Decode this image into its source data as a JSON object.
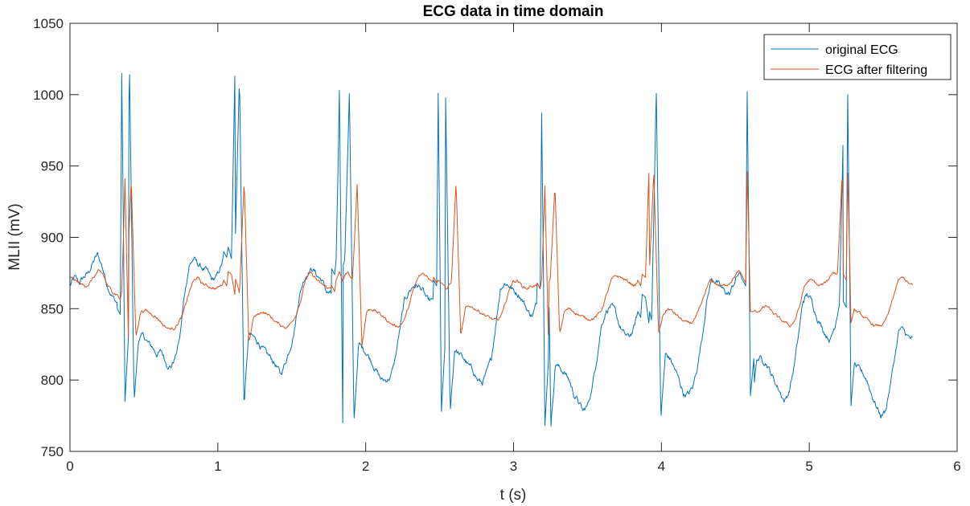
{
  "chart_data": {
    "type": "line",
    "title": "ECG data in time domain",
    "xlabel": "t (s)",
    "ylabel": "MLII (mV)",
    "xlim": [
      0,
      6
    ],
    "ylim": [
      750,
      1050
    ],
    "xticks": [
      0,
      1,
      2,
      3,
      4,
      5,
      6
    ],
    "yticks": [
      750,
      800,
      850,
      900,
      950,
      1000,
      1050
    ],
    "grid": false,
    "legend_position": "top-right",
    "beats": [
      0.35,
      1.07,
      1.8,
      2.49,
      3.19,
      3.87,
      4.58,
      5.26
    ],
    "duration": 5.7,
    "series": [
      {
        "name": "original ECG",
        "color": "#0072BD",
        "baseline": [
          866,
          872,
          868,
          872,
          875,
          882,
          888,
          880,
          868,
          860,
          855,
          852,
          850,
          1015,
          785,
          829,
          831,
          826,
          823,
          818,
          820,
          812,
          809,
          816,
          830,
          860,
          880,
          885,
          881,
          878,
          876,
          870,
          872,
          880,
          890,
          893,
          885,
          1013,
          782,
          832,
          830,
          827,
          822,
          818,
          815,
          810,
          804,
          812,
          822,
          835,
          858,
          870,
          876,
          878,
          873,
          870,
          862,
          860,
          868,
          878,
          884,
          1003,
          770,
          825,
          822,
          818,
          812,
          806,
          800,
          800,
          802,
          815,
          835,
          855,
          862,
          866,
          866,
          863,
          856,
          855,
          862,
          870,
          1001,
          778,
          822,
          818,
          815,
          810,
          807,
          800,
          798,
          805,
          815,
          840,
          865,
          868,
          866,
          862,
          860,
          855,
          848,
          845,
          855,
          868,
          987,
          768,
          812,
          808,
          805,
          800,
          790,
          785,
          778,
          782,
          795,
          815,
          838,
          848,
          852,
          848,
          838,
          832,
          830,
          835,
          848,
          860,
          858,
          840,
          1005,
          773,
          818,
          815,
          808,
          800,
          790,
          790,
          795,
          810,
          830,
          855,
          870,
          870,
          865,
          862,
          860,
          868,
          875,
          870,
          1002,
          789,
          815,
          815,
          812,
          805,
          798,
          792,
          785,
          792,
          808,
          830,
          855,
          860,
          855,
          845,
          838,
          832,
          828,
          838,
          855,
          1000,
          782,
          812,
          808,
          805,
          800,
          790,
          782,
          775,
          778,
          795,
          815,
          835,
          835,
          830,
          828
        ]
      },
      {
        "name": "ECG after filtering",
        "color": "#D95319",
        "baseline": [
          872,
          870,
          868,
          866,
          867,
          872,
          876,
          874,
          866,
          862,
          860,
          860,
          862,
          941,
          830,
          848,
          849,
          847,
          845,
          842,
          838,
          836,
          836,
          840,
          846,
          858,
          868,
          872,
          868,
          866,
          865,
          864,
          866,
          870,
          876,
          874,
          860,
          938,
          826,
          844,
          846,
          848,
          846,
          843,
          840,
          838,
          837,
          840,
          846,
          856,
          870,
          875,
          872,
          868,
          866,
          864,
          866,
          866,
          870,
          876,
          869,
          938,
          824,
          848,
          850,
          848,
          846,
          843,
          840,
          838,
          838,
          842,
          852,
          864,
          872,
          875,
          872,
          870,
          868,
          866,
          864,
          868,
          939,
          830,
          850,
          852,
          850,
          848,
          846,
          844,
          842,
          842,
          848,
          860,
          869,
          870,
          866,
          864,
          866,
          866,
          866,
          868,
          870,
          936,
          832,
          848,
          850,
          848,
          846,
          844,
          843,
          843,
          845,
          850,
          860,
          870,
          873,
          872,
          870,
          868,
          866,
          870,
          874,
          872,
          945,
          832,
          846,
          850,
          848,
          845,
          842,
          840,
          840,
          844,
          852,
          862,
          870,
          868,
          866,
          866,
          868,
          872,
          876,
          872,
          946,
          848,
          848,
          850,
          852,
          848,
          845,
          842,
          840,
          838,
          842,
          852,
          866,
          870,
          869,
          866,
          867,
          870,
          876,
          874,
          945,
          840,
          850,
          848,
          846,
          843,
          840,
          838,
          838,
          840,
          848,
          860,
          870,
          872,
          868,
          866
        ]
      }
    ]
  }
}
